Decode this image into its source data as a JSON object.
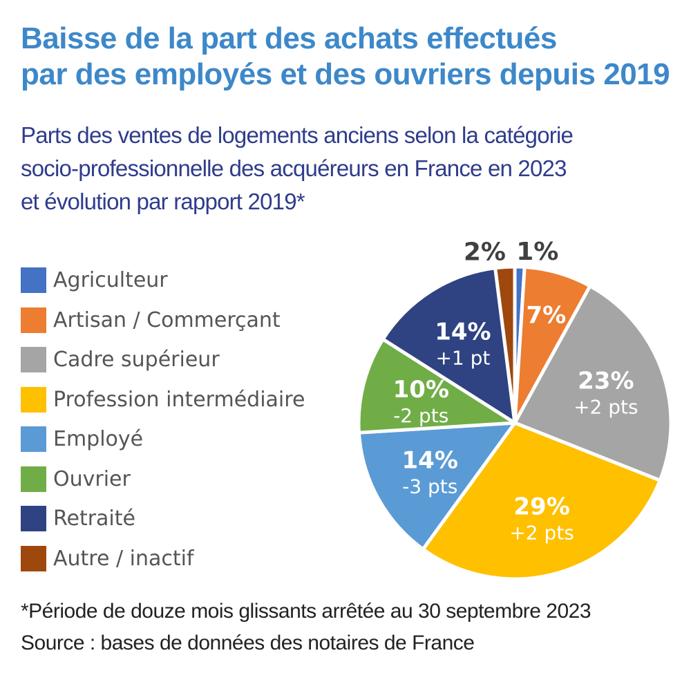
{
  "title_lines": [
    "Baisse de la part des achats effectués",
    "par des employés et des ouvriers depuis 2019"
  ],
  "subtitle_lines": [
    "Parts des ventes de logements anciens selon la catégorie",
    "socio-professionnelle des acquéreurs en France en 2023",
    "et évolution par rapport 2019*"
  ],
  "footnotes": [
    "*Période de douze mois glissants arrêtée au 30 septembre 2023",
    "Source : bases de données des notaires de France"
  ],
  "chart_data": {
    "type": "pie",
    "unit": "%",
    "legend_position": "left",
    "slices": [
      {
        "name": "Agriculteur",
        "value": 1,
        "label": "1%",
        "change": "",
        "color": "#4472c4"
      },
      {
        "name": "Artisan / Commerçant",
        "value": 7,
        "label": "7%",
        "change": "",
        "color": "#ed7d31"
      },
      {
        "name": "Cadre supérieur",
        "value": 23,
        "label": "23%",
        "change": "+2 pts",
        "color": "#a5a5a5"
      },
      {
        "name": "Profession intermédiaire",
        "value": 29,
        "label": "29%",
        "change": "+2 pts",
        "color": "#ffc000"
      },
      {
        "name": "Employé",
        "value": 14,
        "label": "14%",
        "change": "-3 pts",
        "color": "#5b9bd5"
      },
      {
        "name": "Ouvrier",
        "value": 10,
        "label": "10%",
        "change": "-2 pts",
        "color": "#70ad47"
      },
      {
        "name": "Retraité",
        "value": 14,
        "label": "14%",
        "change": "+1 pt",
        "color": "#2f4382"
      },
      {
        "name": "Autre / inactif",
        "value": 2,
        "label": "2%",
        "change": "",
        "color": "#9e480e"
      }
    ]
  }
}
